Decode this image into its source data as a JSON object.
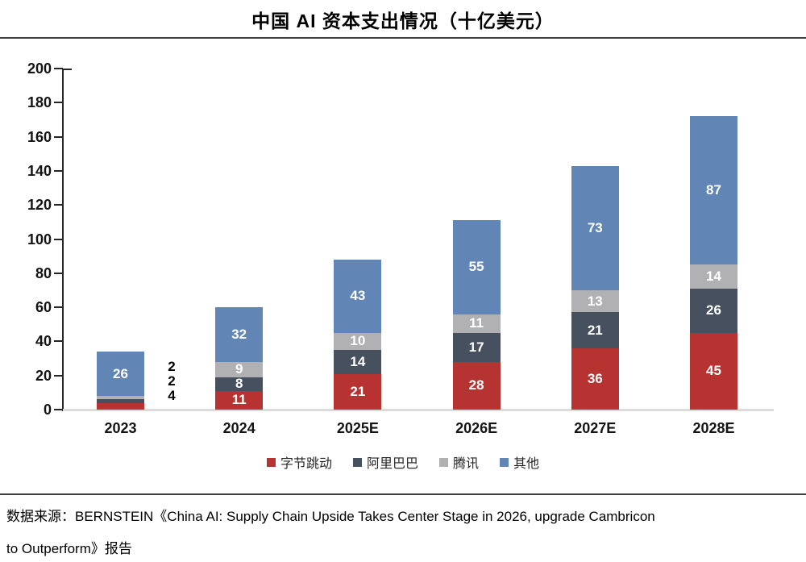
{
  "title": "中国 AI 资本支出情况（十亿美元）",
  "source": {
    "line1": "数据来源：BERNSTEIN《China AI: Supply Chain Upside Takes Center Stage in 2026, upgrade Cambricon",
    "line2": "to Outperform》报告"
  },
  "chart_data": {
    "type": "bar",
    "stacked": true,
    "title": "中国 AI 资本支出情况（十亿美元）",
    "categories": [
      "2023",
      "2024",
      "2025E",
      "2026E",
      "2027E",
      "2028E"
    ],
    "series": [
      {
        "name": "字节跳动",
        "color": "#b63331",
        "values": [
          4,
          11,
          21,
          28,
          36,
          45
        ]
      },
      {
        "name": "阿里巴巴",
        "color": "#47505e",
        "values": [
          2,
          8,
          14,
          17,
          21,
          26
        ]
      },
      {
        "name": "腾讯",
        "color": "#b1b1b3",
        "values": [
          2,
          9,
          10,
          11,
          13,
          14
        ]
      },
      {
        "name": "其他",
        "color": "#6186b6",
        "values": [
          26,
          32,
          43,
          55,
          73,
          87
        ]
      }
    ],
    "totals": [
      34,
      60,
      88,
      111,
      143,
      172
    ],
    "ylim": [
      0,
      200
    ],
    "ytick_step": 20,
    "xlabel": "",
    "ylabel": "",
    "grid": false,
    "legend_position": "bottom",
    "label_color_inside": "#ffffff",
    "label_color_outside": "#000000",
    "axis_color": "#262626",
    "baseline_color": "#dbdbdb"
  }
}
